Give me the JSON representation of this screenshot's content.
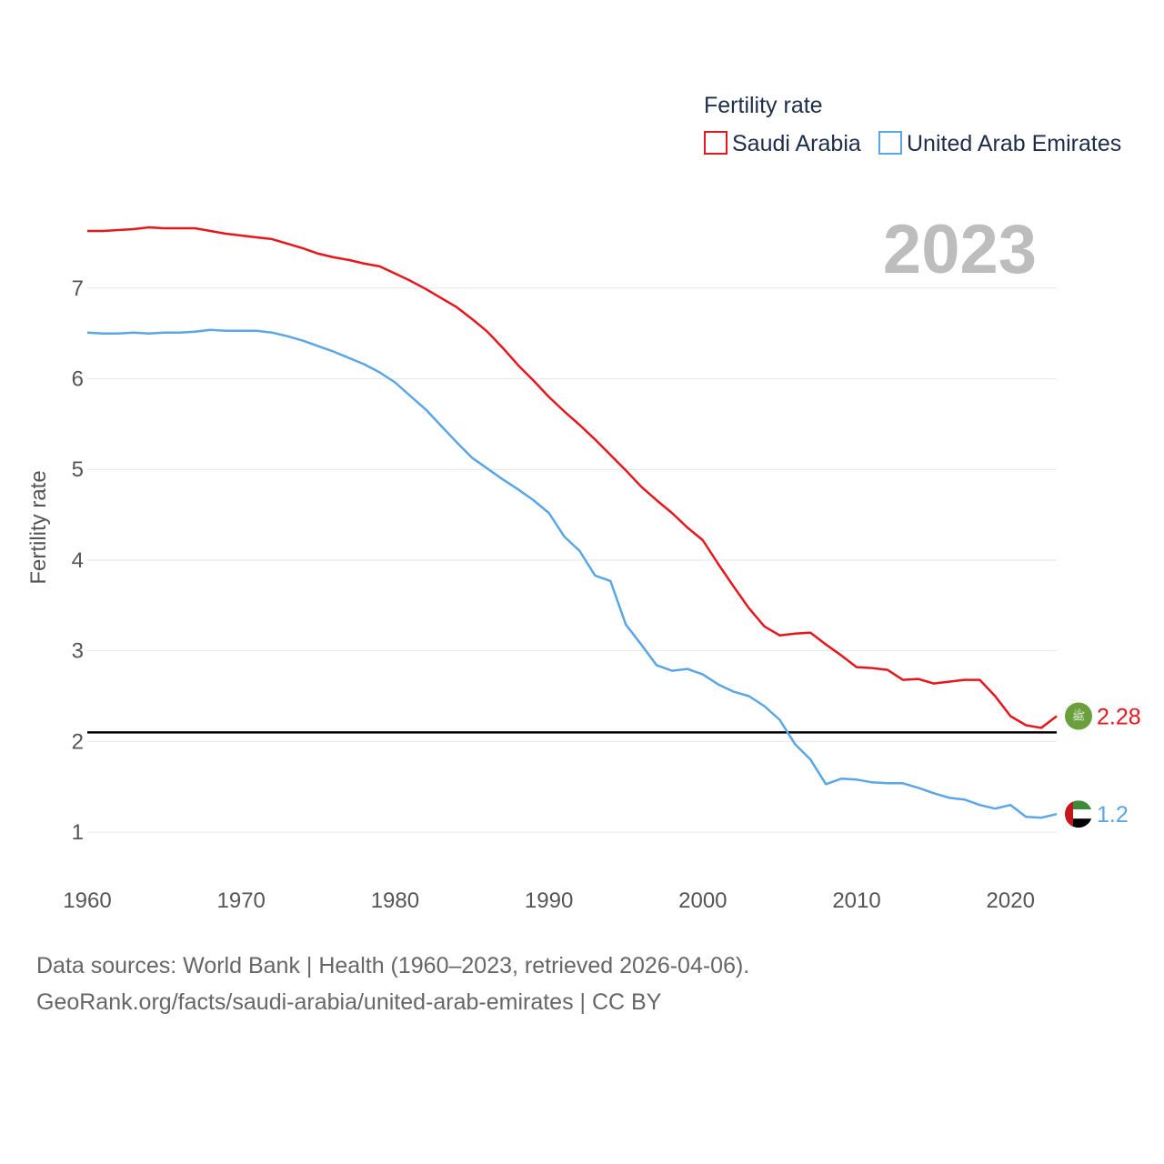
{
  "colors": {
    "saudi": "#e6161c",
    "uae": "#5aa6e6",
    "grid": "#e6e6e6",
    "reference": "#000000"
  },
  "chart_data": {
    "type": "line",
    "title": "Fertility rate",
    "year_label": "2023",
    "xlabel": "",
    "ylabel": "Fertility rate",
    "xlim": [
      1960,
      2023
    ],
    "ylim": [
      0.55,
      7.72
    ],
    "x_ticks": [
      1960,
      1970,
      1980,
      1990,
      2000,
      2010,
      2020
    ],
    "y_ticks": [
      1,
      2,
      3,
      4,
      5,
      6,
      7
    ],
    "reference_line": 2.1,
    "legend": [
      "Saudi Arabia",
      "United Arab Emirates"
    ],
    "legend_position": "top-right",
    "x": [
      1960,
      1961,
      1962,
      1963,
      1964,
      1965,
      1966,
      1967,
      1968,
      1969,
      1970,
      1971,
      1972,
      1973,
      1974,
      1975,
      1976,
      1977,
      1978,
      1979,
      1980,
      1981,
      1982,
      1983,
      1984,
      1985,
      1986,
      1987,
      1988,
      1989,
      1990,
      1991,
      1992,
      1993,
      1994,
      1995,
      1996,
      1997,
      1998,
      1999,
      2000,
      2001,
      2002,
      2003,
      2004,
      2005,
      2006,
      2007,
      2008,
      2009,
      2010,
      2011,
      2012,
      2013,
      2014,
      2015,
      2016,
      2017,
      2018,
      2019,
      2020,
      2021,
      2022,
      2023
    ],
    "series": [
      {
        "name": "Saudi Arabia",
        "end_label": "2.28",
        "values": [
          7.63,
          7.63,
          7.64,
          7.65,
          7.67,
          7.66,
          7.66,
          7.66,
          7.63,
          7.6,
          7.58,
          7.56,
          7.54,
          7.49,
          7.44,
          7.38,
          7.34,
          7.31,
          7.27,
          7.24,
          7.16,
          7.08,
          6.99,
          6.89,
          6.79,
          6.66,
          6.52,
          6.34,
          6.15,
          5.98,
          5.8,
          5.64,
          5.49,
          5.33,
          5.16,
          4.99,
          4.81,
          4.66,
          4.52,
          4.36,
          4.22,
          3.96,
          3.71,
          3.47,
          3.27,
          3.17,
          3.19,
          3.2,
          3.07,
          2.95,
          2.82,
          2.81,
          2.79,
          2.68,
          2.69,
          2.64,
          2.66,
          2.68,
          2.68,
          2.5,
          2.28,
          2.18,
          2.15,
          2.28
        ]
      },
      {
        "name": "United Arab Emirates",
        "end_label": "1.2",
        "values": [
          6.51,
          6.5,
          6.5,
          6.51,
          6.5,
          6.51,
          6.51,
          6.52,
          6.54,
          6.53,
          6.53,
          6.53,
          6.51,
          6.47,
          6.42,
          6.36,
          6.3,
          6.23,
          6.16,
          6.07,
          5.96,
          5.81,
          5.66,
          5.48,
          5.3,
          5.13,
          5.01,
          4.89,
          4.78,
          4.66,
          4.52,
          4.26,
          4.1,
          3.83,
          3.77,
          3.29,
          3.07,
          2.84,
          2.78,
          2.8,
          2.74,
          2.63,
          2.55,
          2.5,
          2.39,
          2.24,
          1.97,
          1.8,
          1.53,
          1.59,
          1.58,
          1.55,
          1.54,
          1.54,
          1.49,
          1.43,
          1.38,
          1.36,
          1.3,
          1.26,
          1.3,
          1.17,
          1.16,
          1.2
        ]
      }
    ]
  },
  "footer": {
    "line1": "Data sources: World Bank | Health (1960–2023, retrieved 2026-04-06).",
    "line2": "GeoRank.org/facts/saudi-arabia/united-arab-emirates | CC BY"
  }
}
